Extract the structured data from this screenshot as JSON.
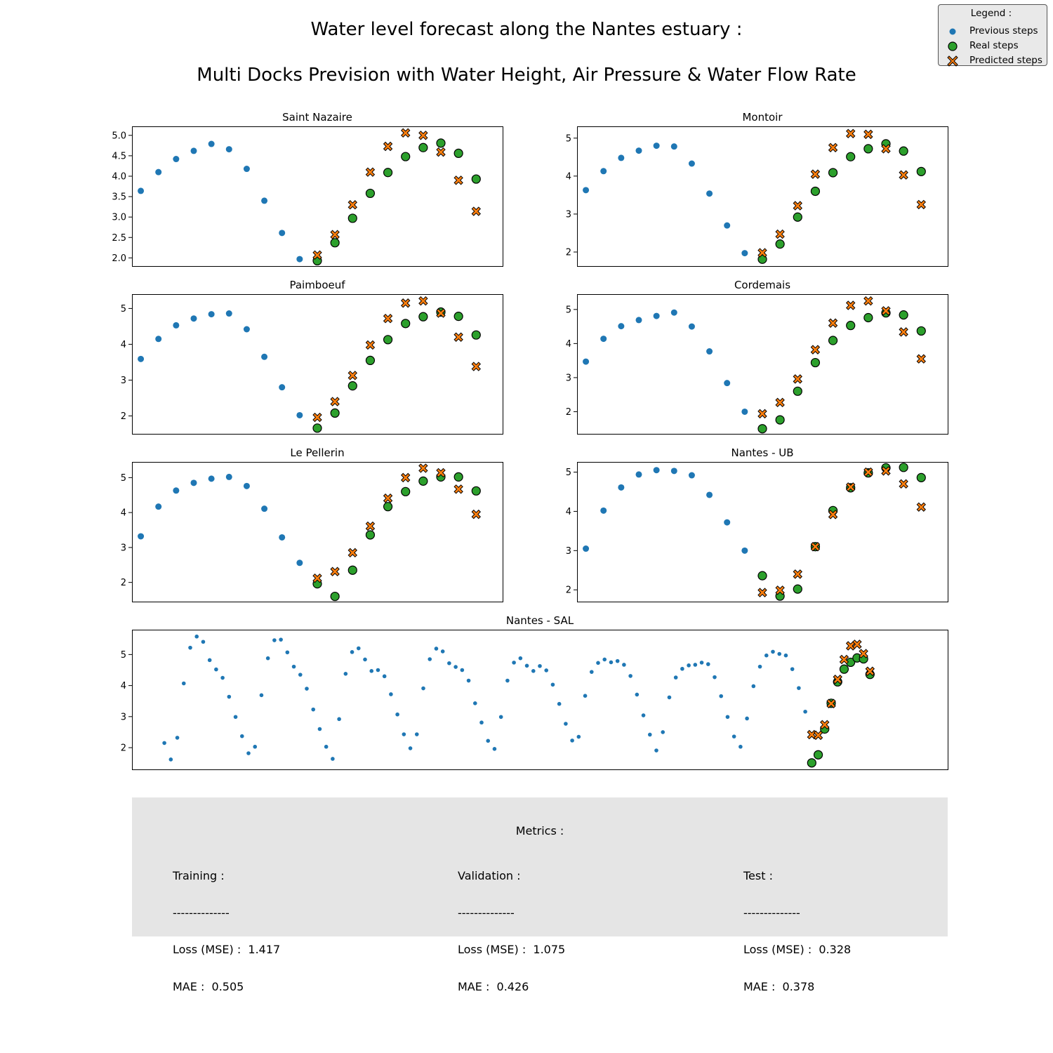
{
  "title_line1": "Water level forecast along the Nantes estuary :",
  "title_line2": "Multi Docks Prevision with Water Height, Air Pressure &  Water Flow Rate",
  "legend": {
    "title": "Legend :",
    "previous": "Previous steps",
    "real": "Real steps",
    "predicted": "Predicted steps"
  },
  "colors": {
    "previous": "#1f77b4",
    "real": "#2ca02c",
    "predicted": "#ff7f0e",
    "metrics_bg": "#e5e5e5"
  },
  "metrics": {
    "title": "Metrics :",
    "separator": "--------------",
    "columns": [
      {
        "name": "Training :",
        "loss_label": "Loss (MSE) :",
        "loss": "1.417",
        "mae_label": "MAE :",
        "mae": "0.505"
      },
      {
        "name": "Validation :",
        "loss_label": "Loss (MSE) :",
        "loss": "1.075",
        "mae_label": "MAE :",
        "mae": "0.426"
      },
      {
        "name": "Test :",
        "loss_label": "Loss (MSE) :",
        "loss": "0.328",
        "mae_label": "MAE :",
        "mae": "0.378"
      }
    ]
  },
  "chart_data": [
    {
      "type": "scatter",
      "title": "Saint Nazaire",
      "x_range": [
        -0.5,
        20.5
      ],
      "ylim": [
        1.8,
        5.22
      ],
      "yticks": [
        "2.0",
        "2.5",
        "3.0",
        "3.5",
        "4.0",
        "4.5",
        "5.0"
      ],
      "previous": [
        3.64,
        4.1,
        4.42,
        4.62,
        4.79,
        4.66,
        4.18,
        3.4,
        2.61,
        1.97
      ],
      "real": [
        1.93,
        2.37,
        2.97,
        3.58,
        4.09,
        4.48,
        4.7,
        4.81,
        4.56,
        3.93
      ],
      "predicted": [
        2.07,
        2.57,
        3.3,
        4.1,
        4.73,
        5.06,
        5.0,
        4.59,
        3.9,
        3.14
      ]
    },
    {
      "type": "scatter",
      "title": "Montoir",
      "x_range": [
        -0.5,
        20.5
      ],
      "ylim": [
        1.63,
        5.31
      ],
      "yticks": [
        "2",
        "3",
        "4",
        "5"
      ],
      "previous": [
        3.63,
        4.13,
        4.48,
        4.67,
        4.8,
        4.78,
        4.33,
        3.54,
        2.7,
        1.97
      ],
      "real": [
        1.81,
        2.21,
        2.92,
        3.6,
        4.09,
        4.51,
        4.72,
        4.85,
        4.66,
        4.12
      ],
      "predicted": [
        1.98,
        2.47,
        3.22,
        4.05,
        4.75,
        5.12,
        5.1,
        4.72,
        4.03,
        3.25
      ]
    },
    {
      "type": "scatter",
      "title": "Paimboeuf",
      "x_range": [
        -0.5,
        20.5
      ],
      "ylim": [
        1.5,
        5.4
      ],
      "yticks": [
        "2",
        "3",
        "4",
        "5"
      ],
      "previous": [
        3.59,
        4.15,
        4.53,
        4.72,
        4.84,
        4.86,
        4.42,
        3.65,
        2.8,
        2.02
      ],
      "real": [
        1.66,
        2.08,
        2.84,
        3.55,
        4.13,
        4.58,
        4.77,
        4.9,
        4.78,
        4.26
      ],
      "predicted": [
        1.96,
        2.4,
        3.13,
        3.98,
        4.72,
        5.15,
        5.21,
        4.87,
        4.2,
        3.38
      ]
    },
    {
      "type": "scatter",
      "title": "Cordemais",
      "x_range": [
        -0.5,
        20.5
      ],
      "ylim": [
        1.35,
        5.45
      ],
      "yticks": [
        "2",
        "3",
        "4",
        "5"
      ],
      "previous": [
        3.47,
        4.14,
        4.51,
        4.69,
        4.81,
        4.91,
        4.5,
        3.77,
        2.84,
        2.0
      ],
      "real": [
        1.5,
        1.76,
        2.6,
        3.44,
        4.09,
        4.53,
        4.76,
        4.9,
        4.84,
        4.37
      ],
      "predicted": [
        1.94,
        2.27,
        2.96,
        3.82,
        4.6,
        5.12,
        5.25,
        4.96,
        4.34,
        3.55
      ]
    },
    {
      "type": "scatter",
      "title": "Le Pellerin",
      "x_range": [
        -0.5,
        20.5
      ],
      "ylim": [
        1.45,
        5.45
      ],
      "yticks": [
        "2",
        "3",
        "4",
        "5"
      ],
      "previous": [
        3.32,
        4.17,
        4.63,
        4.85,
        4.97,
        5.02,
        4.76,
        4.11,
        3.29,
        2.56
      ],
      "real": [
        1.96,
        1.6,
        2.35,
        3.36,
        4.17,
        4.6,
        4.9,
        5.02,
        5.02,
        4.62
      ],
      "predicted": [
        2.12,
        2.31,
        2.85,
        3.61,
        4.41,
        5.0,
        5.27,
        5.14,
        4.67,
        3.95
      ]
    },
    {
      "type": "scatter",
      "title": "Nantes - UB",
      "x_range": [
        -0.5,
        20.5
      ],
      "ylim": [
        1.7,
        5.26
      ],
      "yticks": [
        "2",
        "3",
        "4",
        "5"
      ],
      "previous": [
        3.05,
        4.02,
        4.61,
        4.94,
        5.05,
        5.03,
        4.92,
        4.42,
        3.72,
        3.0
      ],
      "real": [
        2.36,
        1.84,
        2.02,
        3.1,
        4.02,
        4.6,
        4.98,
        5.11,
        5.12,
        4.86
      ],
      "predicted": [
        1.93,
        1.99,
        2.4,
        3.1,
        3.92,
        4.62,
        5.0,
        5.03,
        4.7,
        4.11
      ]
    },
    {
      "type": "scatter",
      "title": "Nantes - SAL",
      "x_range": [
        -5,
        121
      ],
      "ylim": [
        1.3,
        5.8
      ],
      "yticks": [
        "2",
        "3",
        "4",
        "5"
      ],
      "previous": [
        2.15,
        1.62,
        2.32,
        4.07,
        5.22,
        5.58,
        5.41,
        4.82,
        4.52,
        4.25,
        3.64,
        2.99,
        2.37,
        1.82,
        2.03,
        3.69,
        4.88,
        5.46,
        5.48,
        5.07,
        4.61,
        4.35,
        3.9,
        3.23,
        2.6,
        2.03,
        1.64,
        2.92,
        4.38,
        5.08,
        5.2,
        4.84,
        4.47,
        4.5,
        4.3,
        3.72,
        3.07,
        2.43,
        1.98,
        2.43,
        3.91,
        4.85,
        5.19,
        5.1,
        4.72,
        4.6,
        4.5,
        4.16,
        3.43,
        2.81,
        2.22,
        1.96,
        2.99,
        4.16,
        4.74,
        4.88,
        4.64,
        4.47,
        4.63,
        4.49,
        4.03,
        3.41,
        2.77,
        2.23,
        2.35,
        3.67,
        4.44,
        4.73,
        4.84,
        4.75,
        4.79,
        4.67,
        4.31,
        3.71,
        3.04,
        2.42,
        1.91,
        2.5,
        3.62,
        4.26,
        4.54,
        4.65,
        4.67,
        4.74,
        4.69,
        4.27,
        3.66,
        2.99,
        2.36,
        2.03,
        2.94,
        3.98,
        4.61,
        4.97,
        5.09,
        5.02,
        4.97,
        4.53,
        3.92,
        3.16
      ],
      "real": [
        1.51,
        1.77,
        2.6,
        3.43,
        4.12,
        4.53,
        4.75,
        4.89,
        4.86,
        4.36
      ],
      "predicted": [
        2.42,
        2.4,
        2.74,
        3.42,
        4.2,
        4.84,
        5.28,
        5.33,
        5.03,
        4.46
      ]
    }
  ]
}
